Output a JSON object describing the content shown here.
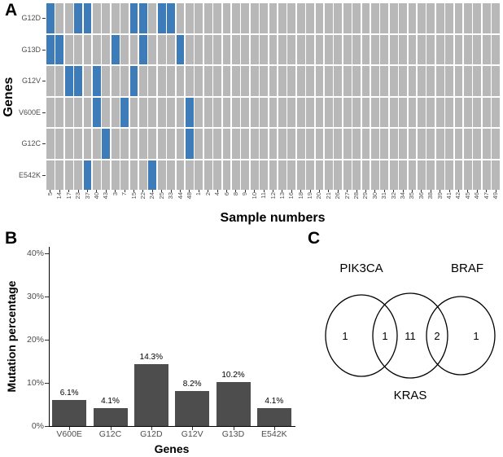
{
  "panels": {
    "a": "A",
    "b": "B",
    "c": "C"
  },
  "colors": {
    "background": "#ffffff",
    "tile_gray": "#b8b8b8",
    "tile_blue": "#3d7cb8",
    "bar_fill": "#4d4d4d",
    "axis_text": "#4d4d4d",
    "axis_line": "#000000"
  },
  "chart_data": [
    {
      "name": "oncoprint-heatmap",
      "type": "heatmap",
      "xlabel": "Sample numbers",
      "ylabel": "Genes",
      "rows": [
        "G12D",
        "G13D",
        "G12V",
        "V600E",
        "G12C",
        "E542K"
      ],
      "columns": [
        "5",
        "14",
        "17",
        "23",
        "37",
        "40",
        "43",
        "3",
        "7",
        "15",
        "22",
        "24",
        "25",
        "33",
        "44",
        "48",
        "1",
        "2",
        "4",
        "6",
        "8",
        "9",
        "10",
        "11",
        "12",
        "13",
        "16",
        "18",
        "19",
        "20",
        "21",
        "26",
        "27",
        "28",
        "29",
        "30",
        "31",
        "32",
        "34",
        "35",
        "36",
        "38",
        "39",
        "41",
        "42",
        "45",
        "46",
        "47",
        "49"
      ],
      "cell_states": {
        "mutated": "blue",
        "wild_type": "gray"
      },
      "mutated_samples": {
        "G12D": [
          "5",
          "23",
          "37",
          "15",
          "22",
          "25",
          "33"
        ],
        "G13D": [
          "5",
          "14",
          "3",
          "22",
          "44"
        ],
        "G12V": [
          "17",
          "23",
          "40",
          "15"
        ],
        "V600E": [
          "40",
          "7",
          "48"
        ],
        "G12C": [
          "43",
          "48"
        ],
        "E542K": [
          "37",
          "24"
        ]
      },
      "legend": "none",
      "grid": false
    },
    {
      "name": "mutation-percentage-bar-chart",
      "type": "bar",
      "categories": [
        "V600E",
        "G12C",
        "G12D",
        "G12V",
        "G13D",
        "E542K"
      ],
      "values": [
        6.1,
        4.1,
        14.3,
        8.2,
        10.2,
        4.1
      ],
      "bar_labels": [
        "6.1%",
        "4.1%",
        "14.3%",
        "8.2%",
        "10.2%",
        "4.1%"
      ],
      "xlabel": "Genes",
      "ylabel": "Mutation percentage",
      "ytick_labels": [
        "0%",
        "10%",
        "20%",
        "30%",
        "40%"
      ],
      "ytick_values": [
        0,
        10,
        20,
        30,
        40
      ],
      "ylim": [
        0,
        40
      ],
      "grid": false,
      "legend": "none"
    },
    {
      "name": "venn-diagram",
      "type": "venn",
      "sets": [
        "PIK3CA",
        "KRAS",
        "BRAF"
      ],
      "set_label_positions": {
        "PIK3CA": "top-left",
        "BRAF": "top-right",
        "KRAS": "bottom-center"
      },
      "region_values": {
        "pik3ca_only": 1,
        "pik3ca_kras": 1,
        "kras_only": 11,
        "kras_braf": 2,
        "braf_only": 1
      }
    }
  ]
}
